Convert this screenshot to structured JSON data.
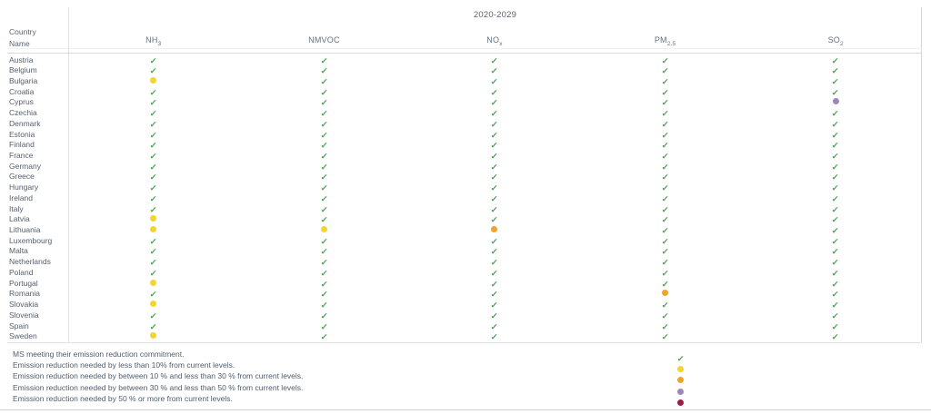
{
  "chart_data": {
    "type": "table",
    "title": "2020-2029",
    "row_header_line1": "Country",
    "row_header_line2": "Name",
    "columns": [
      {
        "base": "NH",
        "sub": "3"
      },
      {
        "base": "NMVOC",
        "sub": ""
      },
      {
        "base": "NO",
        "sub": "x"
      },
      {
        "base": "PM",
        "sub": "2.5"
      },
      {
        "base": "SO",
        "sub": "2"
      }
    ],
    "rows": [
      {
        "country": "Austria",
        "values": [
          "check",
          "check",
          "check",
          "check",
          "check"
        ]
      },
      {
        "country": "Belgium",
        "values": [
          "check",
          "check",
          "check",
          "check",
          "check"
        ]
      },
      {
        "country": "Bulgaria",
        "values": [
          "yellow",
          "check",
          "check",
          "check",
          "check"
        ]
      },
      {
        "country": "Croatia",
        "values": [
          "check",
          "check",
          "check",
          "check",
          "check"
        ]
      },
      {
        "country": "Cyprus",
        "values": [
          "check",
          "check",
          "check",
          "check",
          "purple"
        ]
      },
      {
        "country": "Czechia",
        "values": [
          "check",
          "check",
          "check",
          "check",
          "check"
        ]
      },
      {
        "country": "Denmark",
        "values": [
          "check",
          "check",
          "check",
          "check",
          "check"
        ]
      },
      {
        "country": "Estonia",
        "values": [
          "check",
          "check",
          "check",
          "check",
          "check"
        ]
      },
      {
        "country": "Finland",
        "values": [
          "check",
          "check",
          "check",
          "check",
          "check"
        ]
      },
      {
        "country": "France",
        "values": [
          "check",
          "check",
          "check",
          "check",
          "check"
        ]
      },
      {
        "country": "Germany",
        "values": [
          "check",
          "check",
          "check",
          "check",
          "check"
        ]
      },
      {
        "country": "Greece",
        "values": [
          "check",
          "check",
          "check",
          "check",
          "check"
        ]
      },
      {
        "country": "Hungary",
        "values": [
          "check",
          "check",
          "check",
          "check",
          "check"
        ]
      },
      {
        "country": "Ireland",
        "values": [
          "check",
          "check",
          "check",
          "check",
          "check"
        ]
      },
      {
        "country": "Italy",
        "values": [
          "check",
          "check",
          "check",
          "check",
          "check"
        ]
      },
      {
        "country": "Latvia",
        "values": [
          "yellow",
          "check",
          "check",
          "check",
          "check"
        ]
      },
      {
        "country": "Lithuania",
        "values": [
          "yellow",
          "yellow",
          "orange",
          "check",
          "check"
        ]
      },
      {
        "country": "Luxembourg",
        "values": [
          "check",
          "check",
          "check",
          "check",
          "check"
        ]
      },
      {
        "country": "Malta",
        "values": [
          "check",
          "check",
          "check",
          "check",
          "check"
        ]
      },
      {
        "country": "Netherlands",
        "values": [
          "check",
          "check",
          "check",
          "check",
          "check"
        ]
      },
      {
        "country": "Poland",
        "values": [
          "check",
          "check",
          "check",
          "check",
          "check"
        ]
      },
      {
        "country": "Portugal",
        "values": [
          "yellow",
          "check",
          "check",
          "check",
          "check"
        ]
      },
      {
        "country": "Romania",
        "values": [
          "check",
          "check",
          "check",
          "orange",
          "check"
        ]
      },
      {
        "country": "Slovakia",
        "values": [
          "yellow",
          "check",
          "check",
          "check",
          "check"
        ]
      },
      {
        "country": "Slovenia",
        "values": [
          "check",
          "check",
          "check",
          "check",
          "check"
        ]
      },
      {
        "country": "Spain",
        "values": [
          "check",
          "check",
          "check",
          "check",
          "check"
        ]
      },
      {
        "country": "Sweden",
        "values": [
          "yellow",
          "check",
          "check",
          "check",
          "check"
        ]
      }
    ],
    "legend": [
      {
        "symbol": "check",
        "label": "MS meeting their emission reduction commitment."
      },
      {
        "symbol": "yellow",
        "label": "Emission reduction needed by less than 10% from current levels."
      },
      {
        "symbol": "orange",
        "label": "Emission reduction needed by between 10 % and less than 30 % from current levels."
      },
      {
        "symbol": "purple",
        "label": "Emission reduction needed by between 30 % and less than 50 % from current levels."
      },
      {
        "symbol": "red",
        "label": "Emission reduction needed by 50 % or more from current levels."
      }
    ],
    "legend_position": "bottom",
    "colors": {
      "check": "#55A25A",
      "yellow": "#F3D52E",
      "orange": "#EFA42D",
      "purple": "#9C87B8",
      "red": "#A01C47"
    },
    "check_glyph": "✓"
  }
}
